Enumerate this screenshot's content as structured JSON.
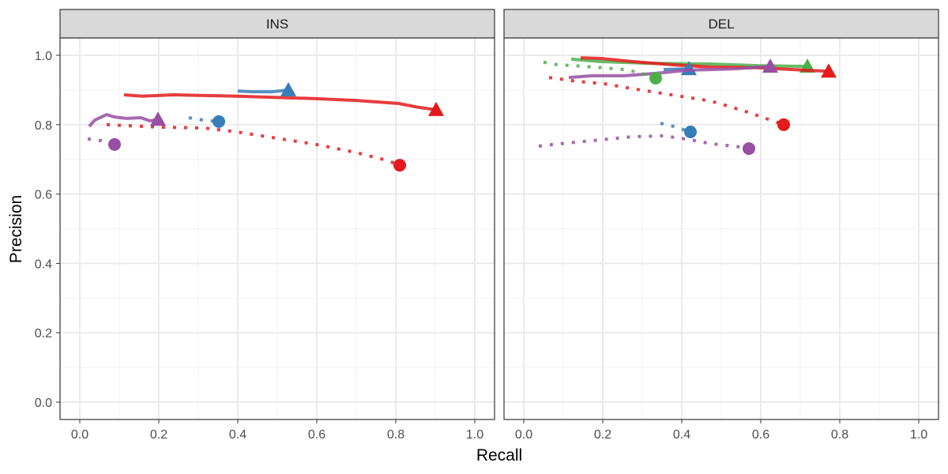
{
  "chart_data": {
    "type": "line",
    "xlabel": "Recall",
    "ylabel": "Precision",
    "xlim": [
      0,
      1
    ],
    "ylim": [
      0,
      1
    ],
    "x_ticks": [
      "0.0",
      "0.2",
      "0.4",
      "0.6",
      "0.8",
      "1.0"
    ],
    "y_ticks": [
      "0.0",
      "0.2",
      "0.4",
      "0.6",
      "0.8",
      "1.0"
    ],
    "grid": true,
    "colors": {
      "red": "#E41A1C",
      "blue": "#377EB8",
      "green": "#4DAF4A",
      "purple": "#984EA3"
    },
    "panels": [
      {
        "title": "INS",
        "series": [
          {
            "color": "red",
            "style": "solid",
            "end_marker": "triangle",
            "points": [
              [
                0.112,
                0.886
              ],
              [
                0.158,
                0.882
              ],
              [
                0.238,
                0.886
              ],
              [
                0.398,
                0.882
              ],
              [
                0.598,
                0.875
              ],
              [
                0.698,
                0.87
              ],
              [
                0.808,
                0.861
              ],
              [
                0.858,
                0.85
              ],
              [
                0.902,
                0.843
              ]
            ]
          },
          {
            "color": "blue",
            "style": "solid",
            "end_marker": "triangle",
            "points": [
              [
                0.4,
                0.897
              ],
              [
                0.438,
                0.895
              ],
              [
                0.488,
                0.895
              ],
              [
                0.528,
                0.9
              ]
            ]
          },
          {
            "color": "purple",
            "style": "solid",
            "end_marker": "triangle",
            "points": [
              [
                0.024,
                0.795
              ],
              [
                0.038,
                0.813
              ],
              [
                0.068,
                0.829
              ],
              [
                0.088,
                0.822
              ],
              [
                0.118,
                0.818
              ],
              [
                0.154,
                0.82
              ],
              [
                0.178,
                0.811
              ],
              [
                0.198,
                0.815
              ]
            ]
          },
          {
            "color": "red",
            "style": "dotted",
            "end_marker": "circle",
            "points": [
              [
                0.068,
                0.8
              ],
              [
                0.198,
                0.793
              ],
              [
                0.318,
                0.79
              ],
              [
                0.398,
                0.779
              ],
              [
                0.498,
                0.761
              ],
              [
                0.598,
                0.743
              ],
              [
                0.698,
                0.72
              ],
              [
                0.778,
                0.697
              ],
              [
                0.81,
                0.683
              ]
            ]
          },
          {
            "color": "blue",
            "style": "dotted",
            "end_marker": "circle",
            "points": [
              [
                0.276,
                0.82
              ],
              [
                0.312,
                0.813
              ],
              [
                0.352,
                0.809
              ]
            ]
          },
          {
            "color": "purple",
            "style": "dotted",
            "end_marker": "circle",
            "points": [
              [
                0.02,
                0.759
              ],
              [
                0.054,
                0.754
              ],
              [
                0.088,
                0.743
              ]
            ]
          }
        ]
      },
      {
        "title": "DEL",
        "series": [
          {
            "color": "green",
            "style": "solid",
            "end_marker": "triangle",
            "points": [
              [
                0.12,
                0.989
              ],
              [
                0.194,
                0.982
              ],
              [
                0.314,
                0.977
              ],
              [
                0.474,
                0.975
              ],
              [
                0.594,
                0.97
              ],
              [
                0.718,
                0.968
              ]
            ]
          },
          {
            "color": "red",
            "style": "solid",
            "end_marker": "triangle",
            "points": [
              [
                0.144,
                0.993
              ],
              [
                0.194,
                0.991
              ],
              [
                0.274,
                0.982
              ],
              [
                0.374,
                0.973
              ],
              [
                0.474,
                0.966
              ],
              [
                0.594,
                0.964
              ],
              [
                0.714,
                0.957
              ],
              [
                0.772,
                0.954
              ]
            ]
          },
          {
            "color": "blue",
            "style": "solid",
            "end_marker": "triangle",
            "points": [
              [
                0.354,
                0.959
              ],
              [
                0.418,
                0.961
              ]
            ]
          },
          {
            "color": "purple",
            "style": "solid",
            "end_marker": "triangle",
            "points": [
              [
                0.114,
                0.936
              ],
              [
                0.174,
                0.941
              ],
              [
                0.254,
                0.941
              ],
              [
                0.334,
                0.948
              ],
              [
                0.414,
                0.957
              ],
              [
                0.534,
                0.961
              ],
              [
                0.624,
                0.968
              ]
            ]
          },
          {
            "color": "green",
            "style": "dotted",
            "end_marker": "circle",
            "points": [
              [
                0.05,
                0.98
              ],
              [
                0.084,
                0.973
              ],
              [
                0.154,
                0.968
              ],
              [
                0.254,
                0.959
              ],
              [
                0.294,
                0.95
              ],
              [
                0.334,
                0.934
              ]
            ]
          },
          {
            "color": "red",
            "style": "dotted",
            "end_marker": "circle",
            "points": [
              [
                0.064,
                0.936
              ],
              [
                0.134,
                0.925
              ],
              [
                0.204,
                0.918
              ],
              [
                0.274,
                0.904
              ],
              [
                0.374,
                0.886
              ],
              [
                0.474,
                0.868
              ],
              [
                0.554,
                0.841
              ],
              [
                0.618,
                0.816
              ],
              [
                0.658,
                0.8
              ]
            ]
          },
          {
            "color": "blue",
            "style": "dotted",
            "end_marker": "circle",
            "points": [
              [
                0.346,
                0.804
              ],
              [
                0.38,
                0.795
              ],
              [
                0.422,
                0.779
              ]
            ]
          },
          {
            "color": "purple",
            "style": "dotted",
            "end_marker": "circle",
            "points": [
              [
                0.038,
                0.738
              ],
              [
                0.074,
                0.743
              ],
              [
                0.174,
                0.754
              ],
              [
                0.274,
                0.765
              ],
              [
                0.354,
                0.768
              ],
              [
                0.424,
                0.756
              ],
              [
                0.474,
                0.745
              ],
              [
                0.534,
                0.738
              ],
              [
                0.57,
                0.731
              ]
            ]
          }
        ]
      }
    ]
  }
}
